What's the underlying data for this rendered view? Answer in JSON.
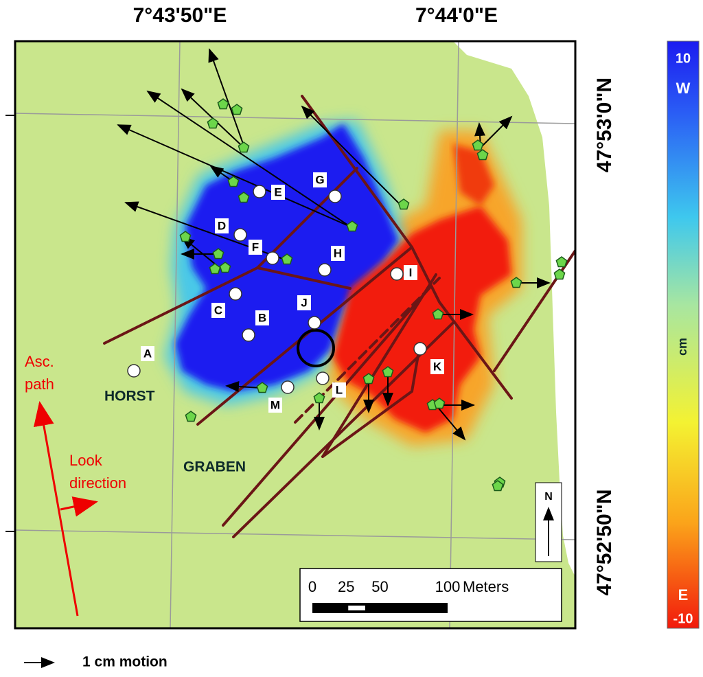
{
  "axes": {
    "top": [
      "7°43'50\"E",
      "7°44'0\"E"
    ],
    "right": [
      "47°53'0\"N",
      "47°52'50\"N"
    ]
  },
  "stations": [
    "A",
    "B",
    "C",
    "D",
    "E",
    "F",
    "G",
    "H",
    "I",
    "J",
    "K",
    "L",
    "M"
  ],
  "annotations": {
    "horst": "HORST",
    "graben": "GRABEN",
    "asc_path": [
      "Asc.",
      "path"
    ],
    "look_direction": [
      "Look",
      "direction"
    ]
  },
  "north": "N",
  "scale_bar": {
    "ticks": [
      0,
      25,
      50,
      100
    ],
    "unit": "Meters"
  },
  "motion_legend": "1 cm motion",
  "colorbar": {
    "max": 10,
    "max_label": "W",
    "unit": "cm",
    "min_label": "E",
    "min": -10
  }
}
